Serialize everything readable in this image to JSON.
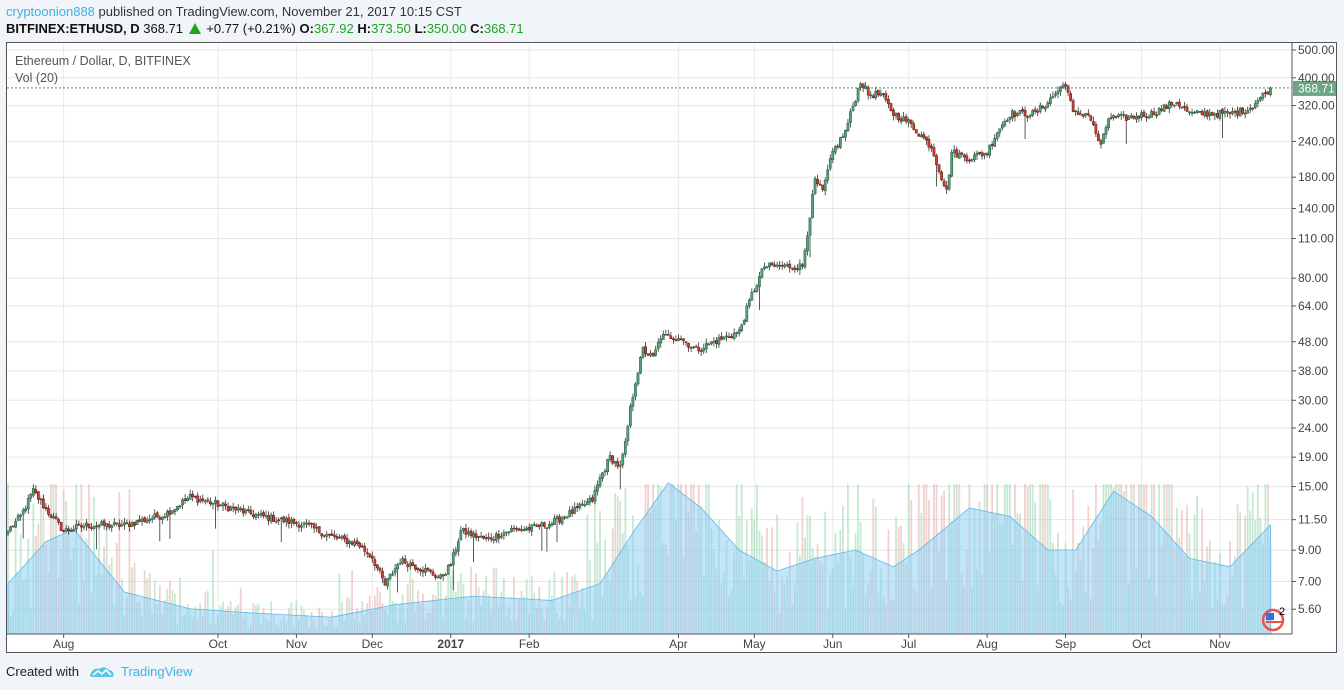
{
  "header": {
    "author": "cryptoonion888",
    "published_text": "published on TradingView.com, November 21, 2017 10:15 CST",
    "symbol": "BITFINEX:ETHUSD, D",
    "last": "368.71",
    "change": "+0.77 (+0.21%)",
    "o_label": "O:",
    "o": "367.92",
    "h_label": "H:",
    "h": "373.50",
    "l_label": "L:",
    "l": "350.00",
    "c_label": "C:",
    "c": "368.71"
  },
  "legend": {
    "title": "Ethereum / Dollar, D, BITFINEX",
    "volume": "Vol (20)"
  },
  "price_label": "368.71",
  "volume_badge": "2",
  "footer": {
    "created_with": "Created with",
    "brand": "TradingView"
  },
  "colors": {
    "up": "#53a07a",
    "down": "#d13c2f",
    "accent": "#3bb3e4",
    "price_label_bg": "#6ba583",
    "vol_ma": "#8fd0f5"
  },
  "chart_data": {
    "type": "candlestick",
    "title": "Ethereum / Dollar, D, BITFINEX",
    "y_scale": "log",
    "ylim": [
      4.8,
      520
    ],
    "y_ticks": [
      "500.00",
      "400.00",
      "320.00",
      "240.00",
      "180.00",
      "140.00",
      "110.00",
      "80.00",
      "64.00",
      "48.00",
      "38.00",
      "30.00",
      "24.00",
      "19.00",
      "15.00",
      "11.50",
      "9.00",
      "7.00",
      "5.60"
    ],
    "x_ticks": [
      {
        "label": "Aug",
        "date": "2016-08-01"
      },
      {
        "label": "Oct",
        "date": "2016-10-01"
      },
      {
        "label": "Nov",
        "date": "2016-11-01"
      },
      {
        "label": "Dec",
        "date": "2016-12-01"
      },
      {
        "label": "2017",
        "date": "2017-01-01"
      },
      {
        "label": "Feb",
        "date": "2017-02-01"
      },
      {
        "label": "Apr",
        "date": "2017-04-01"
      },
      {
        "label": "May",
        "date": "2017-05-01"
      },
      {
        "label": "Jun",
        "date": "2017-06-01"
      },
      {
        "label": "Jul",
        "date": "2017-07-01"
      },
      {
        "label": "Aug",
        "date": "2017-08-01"
      },
      {
        "label": "Sep",
        "date": "2017-09-01"
      },
      {
        "label": "Oct",
        "date": "2017-10-01"
      },
      {
        "label": "Nov",
        "date": "2017-11-01"
      }
    ],
    "x_range": [
      "2016-07-10",
      "2017-11-21"
    ],
    "close_anchors": [
      [
        "2016-07-10",
        10.5
      ],
      [
        "2016-07-15",
        11.8
      ],
      [
        "2016-07-20",
        14.5
      ],
      [
        "2016-07-25",
        12.5
      ],
      [
        "2016-08-01",
        10.5
      ],
      [
        "2016-08-10",
        11
      ],
      [
        "2016-08-25",
        11
      ],
      [
        "2016-09-10",
        12
      ],
      [
        "2016-09-20",
        13.8
      ],
      [
        "2016-10-01",
        13
      ],
      [
        "2016-10-15",
        12
      ],
      [
        "2016-10-25",
        11.5
      ],
      [
        "2016-11-05",
        11
      ],
      [
        "2016-11-15",
        10
      ],
      [
        "2016-11-25",
        9.5
      ],
      [
        "2016-12-01",
        8.5
      ],
      [
        "2016-12-06",
        6.8
      ],
      [
        "2016-12-12",
        8.3
      ],
      [
        "2016-12-20",
        7.8
      ],
      [
        "2016-12-28",
        7.2
      ],
      [
        "2017-01-01",
        8
      ],
      [
        "2017-01-05",
        10.5
      ],
      [
        "2017-01-15",
        9.8
      ],
      [
        "2017-01-25",
        10.6
      ],
      [
        "2017-02-01",
        10.7
      ],
      [
        "2017-02-10",
        11.2
      ],
      [
        "2017-02-20",
        12.5
      ],
      [
        "2017-02-26",
        13.5
      ],
      [
        "2017-03-01",
        16
      ],
      [
        "2017-03-05",
        19
      ],
      [
        "2017-03-09",
        17.5
      ],
      [
        "2017-03-11",
        21
      ],
      [
        "2017-03-13",
        28
      ],
      [
        "2017-03-15",
        35
      ],
      [
        "2017-03-18",
        45
      ],
      [
        "2017-03-22",
        42
      ],
      [
        "2017-03-25",
        50
      ],
      [
        "2017-04-01",
        50
      ],
      [
        "2017-04-08",
        45
      ],
      [
        "2017-04-15",
        48
      ],
      [
        "2017-04-25",
        52
      ],
      [
        "2017-04-30",
        70
      ],
      [
        "2017-05-05",
        88
      ],
      [
        "2017-05-10",
        88
      ],
      [
        "2017-05-20",
        88
      ],
      [
        "2017-05-25",
        175
      ],
      [
        "2017-05-28",
        160
      ],
      [
        "2017-06-01",
        220
      ],
      [
        "2017-06-06",
        260
      ],
      [
        "2017-06-12",
        390
      ],
      [
        "2017-06-15",
        350
      ],
      [
        "2017-06-20",
        350
      ],
      [
        "2017-06-25",
        300
      ],
      [
        "2017-07-01",
        280
      ],
      [
        "2017-07-10",
        230
      ],
      [
        "2017-07-16",
        160
      ],
      [
        "2017-07-18",
        220
      ],
      [
        "2017-07-25",
        210
      ],
      [
        "2017-08-01",
        220
      ],
      [
        "2017-08-05",
        260
      ],
      [
        "2017-08-10",
        300
      ],
      [
        "2017-08-20",
        300
      ],
      [
        "2017-08-25",
        330
      ],
      [
        "2017-09-01",
        385
      ],
      [
        "2017-09-04",
        300
      ],
      [
        "2017-09-10",
        300
      ],
      [
        "2017-09-15",
        230
      ],
      [
        "2017-09-18",
        290
      ],
      [
        "2017-09-25",
        290
      ],
      [
        "2017-10-05",
        300
      ],
      [
        "2017-10-15",
        330
      ],
      [
        "2017-10-20",
        300
      ],
      [
        "2017-10-30",
        300
      ],
      [
        "2017-11-05",
        300
      ],
      [
        "2017-11-12",
        310
      ],
      [
        "2017-11-17",
        340
      ],
      [
        "2017-11-21",
        368.71
      ]
    ],
    "volume_ma_relative_anchors": [
      [
        "2016-07-10",
        0.12
      ],
      [
        "2016-07-25",
        0.22
      ],
      [
        "2016-08-05",
        0.25
      ],
      [
        "2016-08-25",
        0.1
      ],
      [
        "2016-09-20",
        0.06
      ],
      [
        "2016-10-15",
        0.05
      ],
      [
        "2016-11-15",
        0.04
      ],
      [
        "2016-12-10",
        0.07
      ],
      [
        "2017-01-10",
        0.09
      ],
      [
        "2017-02-10",
        0.08
      ],
      [
        "2017-03-01",
        0.12
      ],
      [
        "2017-03-15",
        0.25
      ],
      [
        "2017-03-28",
        0.36
      ],
      [
        "2017-04-10",
        0.3
      ],
      [
        "2017-04-25",
        0.2
      ],
      [
        "2017-05-10",
        0.15
      ],
      [
        "2017-05-25",
        0.18
      ],
      [
        "2017-06-10",
        0.2
      ],
      [
        "2017-06-25",
        0.16
      ],
      [
        "2017-07-05",
        0.2
      ],
      [
        "2017-07-25",
        0.3
      ],
      [
        "2017-08-10",
        0.28
      ],
      [
        "2017-08-25",
        0.2
      ],
      [
        "2017-09-05",
        0.2
      ],
      [
        "2017-09-20",
        0.34
      ],
      [
        "2017-10-05",
        0.28
      ],
      [
        "2017-10-20",
        0.18
      ],
      [
        "2017-11-05",
        0.16
      ],
      [
        "2017-11-21",
        0.26
      ]
    ]
  }
}
